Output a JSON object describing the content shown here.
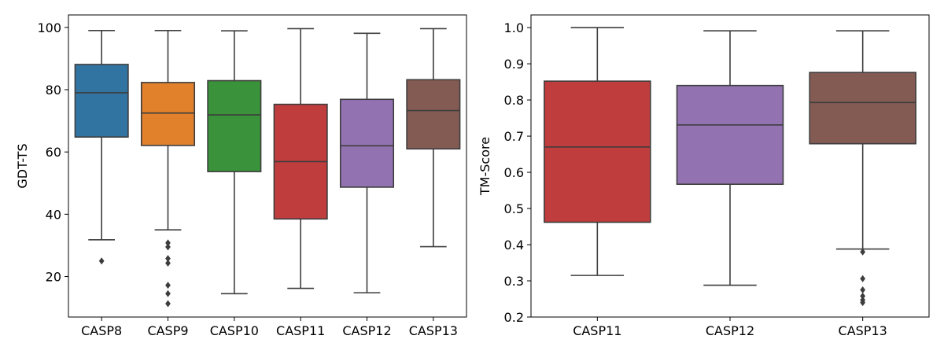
{
  "chart_data": [
    {
      "type": "box",
      "ylabel": "GDT-TS",
      "xlabel": "",
      "ylim": [
        7,
        104
      ],
      "yticks": [
        20,
        40,
        60,
        80,
        100
      ],
      "grid": false,
      "categories": [
        "CASP8",
        "CASP9",
        "CASP10",
        "CASP11",
        "CASP12",
        "CASP13"
      ],
      "boxes": [
        {
          "name": "CASP8",
          "color": "#3274a1",
          "whisker_low": 31.8,
          "q1": 64.8,
          "median": 79.0,
          "q3": 88.1,
          "whisker_high": 99.0,
          "outliers": [
            25.0
          ]
        },
        {
          "name": "CASP9",
          "color": "#e1812c",
          "whisker_low": 35.0,
          "q1": 62.1,
          "median": 72.5,
          "q3": 82.3,
          "whisker_high": 99.0,
          "outliers": [
            30.8,
            29.5,
            25.8,
            24.3,
            17.2,
            14.5,
            11.3
          ]
        },
        {
          "name": "CASP10",
          "color": "#3a923a",
          "whisker_low": 14.5,
          "q1": 53.7,
          "median": 71.9,
          "q3": 82.9,
          "whisker_high": 98.9,
          "outliers": []
        },
        {
          "name": "CASP11",
          "color": "#c03d3e",
          "whisker_low": 16.2,
          "q1": 38.5,
          "median": 56.9,
          "q3": 75.3,
          "whisker_high": 99.6,
          "outliers": []
        },
        {
          "name": "CASP12",
          "color": "#9372b2",
          "whisker_low": 14.8,
          "q1": 48.7,
          "median": 62.0,
          "q3": 76.9,
          "whisker_high": 98.1,
          "outliers": []
        },
        {
          "name": "CASP13",
          "color": "#845b53",
          "whisker_low": 29.6,
          "q1": 61.0,
          "median": 73.3,
          "q3": 83.2,
          "whisker_high": 99.6,
          "outliers": []
        }
      ]
    },
    {
      "type": "box",
      "ylabel": "TM-Score",
      "xlabel": "",
      "ylim": [
        0.2,
        1.035
      ],
      "yticks": [
        0.2,
        0.3,
        0.4,
        0.5,
        0.6,
        0.7,
        0.8,
        0.9,
        1.0
      ],
      "grid": false,
      "categories": [
        "CASP11",
        "CASP12",
        "CASP13"
      ],
      "boxes": [
        {
          "name": "CASP11",
          "color": "#c03d3e",
          "whisker_low": 0.315,
          "q1": 0.462,
          "median": 0.67,
          "q3": 0.852,
          "whisker_high": 1.0,
          "outliers": []
        },
        {
          "name": "CASP12",
          "color": "#9372b2",
          "whisker_low": 0.288,
          "q1": 0.567,
          "median": 0.731,
          "q3": 0.84,
          "whisker_high": 0.991,
          "outliers": []
        },
        {
          "name": "CASP13",
          "color": "#845b53",
          "whisker_low": 0.388,
          "q1": 0.679,
          "median": 0.793,
          "q3": 0.876,
          "whisker_high": 0.991,
          "outliers": [
            0.38,
            0.306,
            0.275,
            0.258,
            0.247,
            0.24
          ]
        }
      ]
    }
  ]
}
